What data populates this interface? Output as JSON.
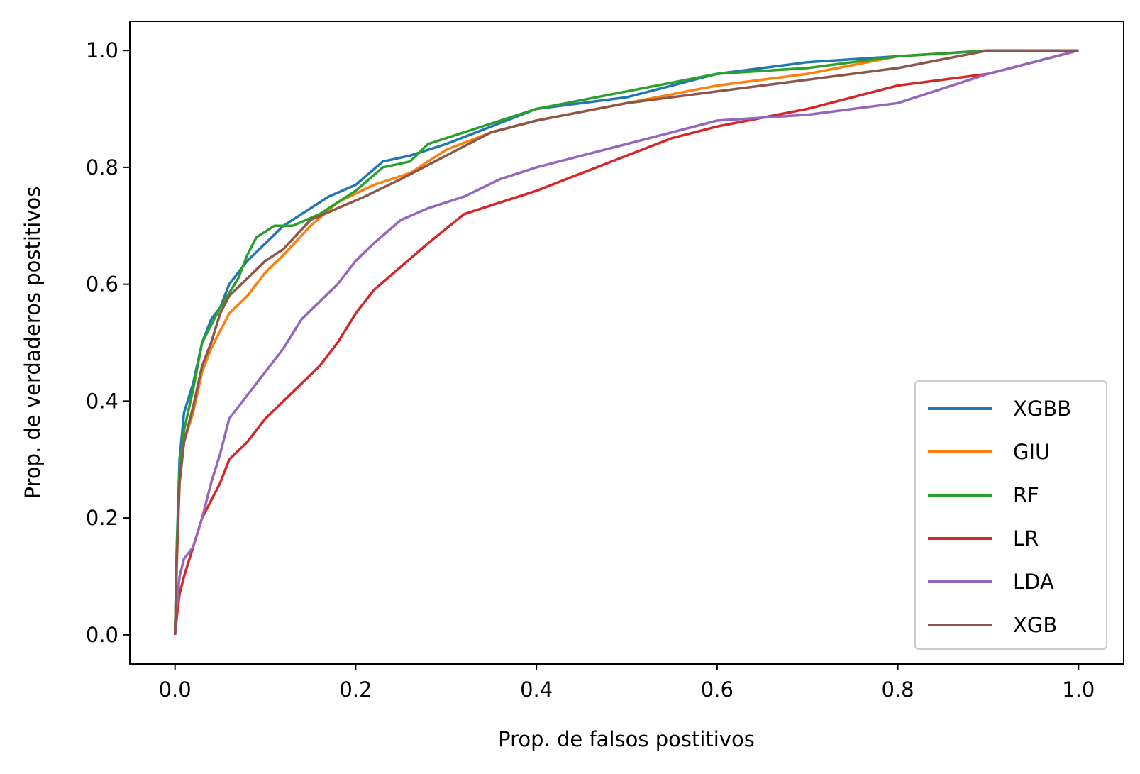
{
  "chart_data": {
    "type": "line",
    "title": "",
    "xlabel": "Prop. de falsos postitivos",
    "ylabel": "Prop. de verdaderos postitivos",
    "xlim": [
      -0.05,
      1.05
    ],
    "ylim": [
      -0.05,
      1.05
    ],
    "xticks": [
      0.0,
      0.2,
      0.4,
      0.6,
      0.8,
      1.0
    ],
    "xtick_labels": [
      "0.0",
      "0.2",
      "0.4",
      "0.6",
      "0.8",
      "1.0"
    ],
    "yticks": [
      0.0,
      0.2,
      0.4,
      0.6,
      0.8,
      1.0
    ],
    "ytick_labels": [
      "0.0",
      "0.2",
      "0.4",
      "0.6",
      "0.8",
      "1.0"
    ],
    "grid": false,
    "legend_position": "lower-right",
    "series": [
      {
        "name": "XGBB",
        "color": "#1f77b4",
        "x": [
          0,
          0.002,
          0.005,
          0.01,
          0.02,
          0.03,
          0.04,
          0.05,
          0.06,
          0.07,
          0.08,
          0.1,
          0.12,
          0.14,
          0.17,
          0.2,
          0.23,
          0.26,
          0.3,
          0.35,
          0.4,
          0.5,
          0.6,
          0.7,
          0.8,
          0.9,
          1.0
        ],
        "y": [
          0,
          0.15,
          0.3,
          0.38,
          0.43,
          0.5,
          0.54,
          0.56,
          0.6,
          0.62,
          0.64,
          0.67,
          0.7,
          0.72,
          0.75,
          0.77,
          0.81,
          0.82,
          0.84,
          0.87,
          0.9,
          0.92,
          0.96,
          0.98,
          0.99,
          1.0,
          1.0
        ]
      },
      {
        "name": "GIU",
        "color": "#ff7f0e",
        "x": [
          0,
          0.002,
          0.005,
          0.01,
          0.02,
          0.03,
          0.04,
          0.05,
          0.06,
          0.08,
          0.1,
          0.12,
          0.15,
          0.18,
          0.22,
          0.26,
          0.3,
          0.35,
          0.4,
          0.5,
          0.6,
          0.7,
          0.8,
          0.9,
          1.0
        ],
        "y": [
          0,
          0.12,
          0.26,
          0.33,
          0.38,
          0.45,
          0.49,
          0.52,
          0.55,
          0.58,
          0.62,
          0.65,
          0.7,
          0.74,
          0.77,
          0.79,
          0.83,
          0.86,
          0.88,
          0.91,
          0.94,
          0.96,
          0.99,
          1.0,
          1.0
        ]
      },
      {
        "name": "RF",
        "color": "#2ca02c",
        "x": [
          0,
          0.002,
          0.005,
          0.01,
          0.02,
          0.03,
          0.05,
          0.07,
          0.08,
          0.09,
          0.1,
          0.11,
          0.12,
          0.13,
          0.16,
          0.2,
          0.23,
          0.26,
          0.28,
          0.32,
          0.4,
          0.5,
          0.6,
          0.7,
          0.8,
          0.9,
          1.0
        ],
        "y": [
          0,
          0.15,
          0.28,
          0.35,
          0.42,
          0.5,
          0.56,
          0.61,
          0.65,
          0.68,
          0.69,
          0.7,
          0.7,
          0.7,
          0.72,
          0.76,
          0.8,
          0.81,
          0.84,
          0.86,
          0.9,
          0.93,
          0.96,
          0.97,
          0.99,
          1.0,
          1.0
        ]
      },
      {
        "name": "LR",
        "color": "#d62728",
        "x": [
          0,
          0.002,
          0.005,
          0.01,
          0.02,
          0.03,
          0.05,
          0.06,
          0.08,
          0.1,
          0.12,
          0.14,
          0.16,
          0.18,
          0.2,
          0.22,
          0.25,
          0.28,
          0.32,
          0.36,
          0.4,
          0.45,
          0.5,
          0.55,
          0.6,
          0.7,
          0.8,
          0.9,
          0.95,
          1.0
        ],
        "y": [
          0,
          0.03,
          0.07,
          0.1,
          0.15,
          0.2,
          0.26,
          0.3,
          0.33,
          0.37,
          0.4,
          0.43,
          0.46,
          0.5,
          0.55,
          0.59,
          0.63,
          0.67,
          0.72,
          0.74,
          0.76,
          0.79,
          0.82,
          0.85,
          0.87,
          0.9,
          0.94,
          0.96,
          0.98,
          1.0
        ]
      },
      {
        "name": "LDA",
        "color": "#9467bd",
        "x": [
          0,
          0.002,
          0.005,
          0.01,
          0.02,
          0.03,
          0.04,
          0.05,
          0.06,
          0.08,
          0.1,
          0.12,
          0.14,
          0.16,
          0.18,
          0.2,
          0.22,
          0.25,
          0.28,
          0.32,
          0.36,
          0.4,
          0.45,
          0.5,
          0.6,
          0.7,
          0.8,
          0.9,
          0.95,
          1.0
        ],
        "y": [
          0,
          0.05,
          0.1,
          0.13,
          0.15,
          0.2,
          0.26,
          0.31,
          0.37,
          0.41,
          0.45,
          0.49,
          0.54,
          0.57,
          0.6,
          0.64,
          0.67,
          0.71,
          0.73,
          0.75,
          0.78,
          0.8,
          0.82,
          0.84,
          0.88,
          0.89,
          0.91,
          0.96,
          0.98,
          1.0
        ]
      },
      {
        "name": "XGB",
        "color": "#8c564b",
        "x": [
          0,
          0.002,
          0.005,
          0.01,
          0.02,
          0.03,
          0.04,
          0.05,
          0.06,
          0.08,
          0.1,
          0.12,
          0.15,
          0.18,
          0.21,
          0.25,
          0.3,
          0.35,
          0.4,
          0.5,
          0.6,
          0.7,
          0.8,
          0.9,
          1.0
        ],
        "y": [
          0,
          0.13,
          0.26,
          0.33,
          0.39,
          0.46,
          0.5,
          0.55,
          0.58,
          0.61,
          0.64,
          0.66,
          0.71,
          0.73,
          0.75,
          0.78,
          0.82,
          0.86,
          0.88,
          0.91,
          0.93,
          0.95,
          0.97,
          1.0,
          1.0
        ]
      }
    ]
  }
}
